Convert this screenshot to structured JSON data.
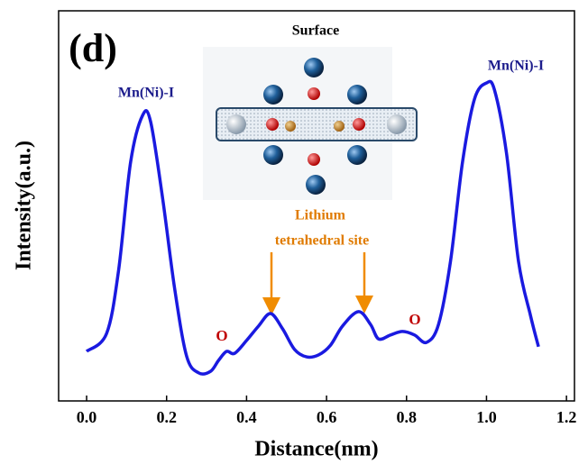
{
  "chart_data": {
    "type": "line",
    "panel_label": "(d)",
    "x_label": "Distance(nm)",
    "y_label": "Intensity(a.u.)",
    "annotations": {
      "inset_title": "Surface",
      "peak_left": "Mn(Ni)-I",
      "peak_right": "Mn(Ni)-I",
      "site_line1": "Lithium",
      "site_line2": "tetrahedral site",
      "oxygen_left": "O",
      "oxygen_right": "O"
    },
    "x": [
      0.0,
      0.05,
      0.08,
      0.11,
      0.14,
      0.16,
      0.19,
      0.22,
      0.25,
      0.28,
      0.31,
      0.33,
      0.35,
      0.37,
      0.4,
      0.43,
      0.46,
      0.49,
      0.52,
      0.55,
      0.58,
      0.61,
      0.64,
      0.68,
      0.71,
      0.73,
      0.76,
      0.79,
      0.82,
      0.85,
      0.88,
      0.91,
      0.94,
      0.97,
      1.0,
      1.02,
      1.05,
      1.08,
      1.11,
      1.13
    ],
    "series": [
      {
        "color": "#1a1ae0",
        "values": [
          12.7,
          17.3,
          33.5,
          61.2,
          73.2,
          71.6,
          52,
          28.9,
          11.5,
          7.2,
          7.6,
          10.4,
          12.7,
          12.2,
          15.5,
          19.2,
          22.4,
          18.5,
          13.2,
          11.3,
          11.8,
          14.3,
          19.2,
          22.9,
          19.6,
          15.9,
          16.9,
          17.8,
          16.9,
          15,
          19.6,
          35.8,
          61.2,
          77.4,
          81.5,
          79.7,
          63.5,
          35.8,
          21.9,
          13.9
        ]
      }
    ],
    "xlim": [
      -0.07,
      1.22
    ],
    "xticks": [
      {
        "value": 0,
        "label": "0.0"
      },
      0.2,
      0.4,
      0.6,
      0.8,
      {
        "value": 1,
        "label": "1.0"
      },
      1.2
    ],
    "ylim": [
      0,
      100
    ]
  }
}
